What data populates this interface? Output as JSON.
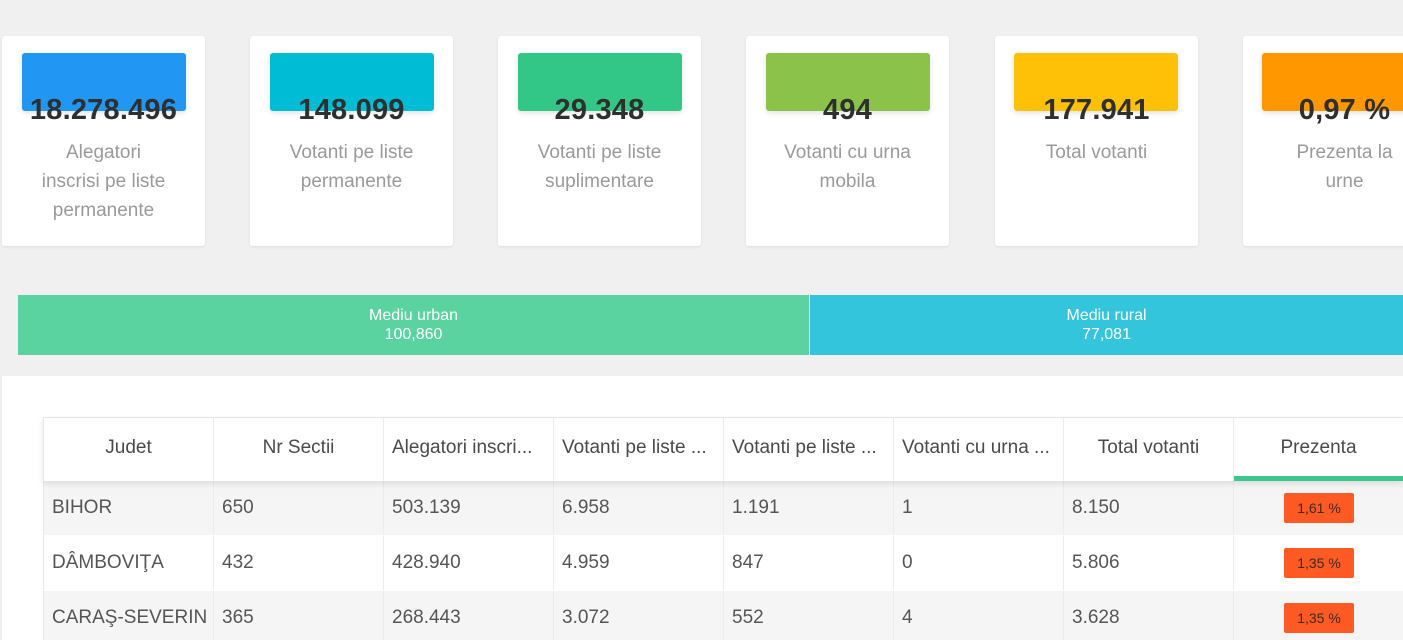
{
  "stats": [
    {
      "value": "18.278.496",
      "label": "Alegatori inscrisi pe liste permanente",
      "color": "#2196f3"
    },
    {
      "value": "148.099",
      "label": "Votanti pe liste permanente",
      "color": "#00bcd4"
    },
    {
      "value": "29.348",
      "label": "Votanti pe liste suplimentare",
      "color": "#32c787"
    },
    {
      "value": "494",
      "label": "Votanti cu urna mobila",
      "color": "#8bc34a"
    },
    {
      "value": "177.941",
      "label": "Total votanti",
      "color": "#ffc107"
    },
    {
      "value": "0,97 %",
      "label": "Prezenta la urne",
      "color": "#ff9800"
    }
  ],
  "environment": {
    "urban": {
      "label": "Mediu urban",
      "value": "100,860",
      "color": "#5ad3a0"
    },
    "rural": {
      "label": "Mediu rural",
      "value": "77,081",
      "color": "#33c5db"
    }
  },
  "table": {
    "columns": [
      "Judet",
      "Nr Sectii",
      "Alegatori inscri...",
      "Votanti pe liste ...",
      "Votanti pe liste ...",
      "Votanti cu urna ...",
      "Total votanti",
      "Prezenta"
    ],
    "sorted_column": "Prezenta",
    "rows": [
      {
        "judet": "BIHOR",
        "sectii": "650",
        "alegatori": "503.139",
        "permanente": "6.958",
        "suplimentare": "1.191",
        "urna": "1",
        "total": "8.150",
        "prezenta": "1,61 %"
      },
      {
        "judet": "DÂMBOVIŢA",
        "sectii": "432",
        "alegatori": "428.940",
        "permanente": "4.959",
        "suplimentare": "847",
        "urna": "0",
        "total": "5.806",
        "prezenta": "1,35 %"
      },
      {
        "judet": "CARAŞ-SEVERIN",
        "sectii": "365",
        "alegatori": "268.443",
        "permanente": "3.072",
        "suplimentare": "552",
        "urna": "4",
        "total": "3.628",
        "prezenta": "1,35 %"
      }
    ]
  },
  "colors": {
    "badge": "#ff5a24",
    "sort_indicator": "#3cc68a"
  }
}
